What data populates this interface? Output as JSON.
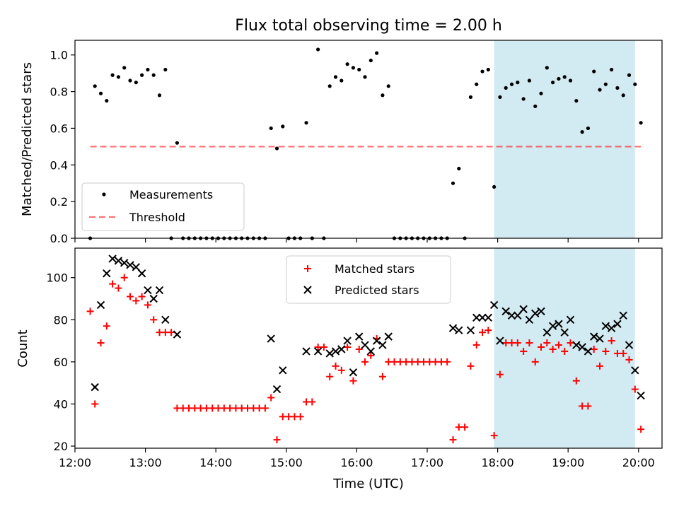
{
  "title": "Flux total observing time = 2.00 h",
  "colors": {
    "highlight": "#add8e6",
    "threshold": "#ff0000",
    "matched": "#ff0000",
    "predicted": "#000000",
    "measurement": "#000000"
  },
  "chart_data": [
    {
      "type": "scatter",
      "ylabel": "Matched/Predicted stars",
      "xlim": [
        "12:00",
        "20:20"
      ],
      "ylim": [
        0,
        1.08
      ],
      "y_ticks": [
        0.0,
        0.2,
        0.4,
        0.6,
        0.8,
        1.0
      ],
      "x_ticks": [
        "12:00",
        "13:00",
        "14:00",
        "15:00",
        "16:00",
        "17:00",
        "18:00",
        "19:00",
        "20:00"
      ],
      "highlight_span": [
        "17:57",
        "19:57"
      ],
      "legend_position": "lower-left",
      "series": [
        {
          "name": "Measurements",
          "kind": "points",
          "points": [
            [
              "12:13",
              0.0
            ],
            [
              "12:17",
              0.83
            ],
            [
              "12:22",
              0.79
            ],
            [
              "12:27",
              0.75
            ],
            [
              "12:32",
              0.89
            ],
            [
              "12:37",
              0.88
            ],
            [
              "12:42",
              0.93
            ],
            [
              "12:47",
              0.86
            ],
            [
              "12:52",
              0.85
            ],
            [
              "12:57",
              0.89
            ],
            [
              "13:02",
              0.92
            ],
            [
              "13:07",
              0.89
            ],
            [
              "13:12",
              0.78
            ],
            [
              "13:17",
              0.92
            ],
            [
              "13:22",
              0.0
            ],
            [
              "13:27",
              0.52
            ],
            [
              "13:32",
              0.0
            ],
            [
              "13:37",
              0.0
            ],
            [
              "13:42",
              0.0
            ],
            [
              "13:47",
              0.0
            ],
            [
              "13:52",
              0.0
            ],
            [
              "13:57",
              0.0
            ],
            [
              "14:02",
              0.0
            ],
            [
              "14:07",
              0.0
            ],
            [
              "14:12",
              0.0
            ],
            [
              "14:17",
              0.0
            ],
            [
              "14:22",
              0.0
            ],
            [
              "14:27",
              0.0
            ],
            [
              "14:32",
              0.0
            ],
            [
              "14:37",
              0.0
            ],
            [
              "14:42",
              0.0
            ],
            [
              "14:47",
              0.6
            ],
            [
              "14:52",
              0.49
            ],
            [
              "14:57",
              0.61
            ],
            [
              "15:02",
              0.0
            ],
            [
              "15:07",
              0.0
            ],
            [
              "15:12",
              0.0
            ],
            [
              "15:17",
              0.63
            ],
            [
              "15:22",
              0.0
            ],
            [
              "15:27",
              1.03
            ],
            [
              "15:32",
              0.0
            ],
            [
              "15:37",
              0.83
            ],
            [
              "15:42",
              0.88
            ],
            [
              "15:47",
              0.86
            ],
            [
              "15:52",
              0.95
            ],
            [
              "15:57",
              0.93
            ],
            [
              "16:02",
              0.92
            ],
            [
              "16:07",
              0.88
            ],
            [
              "16:12",
              0.97
            ],
            [
              "16:17",
              1.01
            ],
            [
              "16:22",
              0.78
            ],
            [
              "16:27",
              0.83
            ],
            [
              "16:32",
              0.0
            ],
            [
              "16:37",
              0.0
            ],
            [
              "16:42",
              0.0
            ],
            [
              "16:47",
              0.0
            ],
            [
              "16:52",
              0.0
            ],
            [
              "16:57",
              0.0
            ],
            [
              "17:02",
              0.0
            ],
            [
              "17:07",
              0.0
            ],
            [
              "17:12",
              0.0
            ],
            [
              "17:17",
              0.0
            ],
            [
              "17:22",
              0.3
            ],
            [
              "17:27",
              0.38
            ],
            [
              "17:32",
              0.0
            ],
            [
              "17:37",
              0.77
            ],
            [
              "17:42",
              0.84
            ],
            [
              "17:47",
              0.91
            ],
            [
              "17:52",
              0.92
            ],
            [
              "17:57",
              0.28
            ],
            [
              "18:02",
              0.77
            ],
            [
              "18:07",
              0.82
            ],
            [
              "18:12",
              0.84
            ],
            [
              "18:17",
              0.85
            ],
            [
              "18:22",
              0.76
            ],
            [
              "18:27",
              0.86
            ],
            [
              "18:32",
              0.72
            ],
            [
              "18:37",
              0.79
            ],
            [
              "18:42",
              0.93
            ],
            [
              "18:47",
              0.85
            ],
            [
              "18:52",
              0.87
            ],
            [
              "18:57",
              0.88
            ],
            [
              "19:02",
              0.86
            ],
            [
              "19:07",
              0.75
            ],
            [
              "19:12",
              0.58
            ],
            [
              "19:17",
              0.6
            ],
            [
              "19:22",
              0.91
            ],
            [
              "19:27",
              0.81
            ],
            [
              "19:32",
              0.84
            ],
            [
              "19:37",
              0.92
            ],
            [
              "19:42",
              0.82
            ],
            [
              "19:47",
              0.78
            ],
            [
              "19:52",
              0.89
            ],
            [
              "19:57",
              0.84
            ],
            [
              "20:02",
              0.63
            ]
          ]
        },
        {
          "name": "Threshold",
          "kind": "dashed-line",
          "x": [
            "12:13",
            "20:02"
          ],
          "y": [
            0.5,
            0.5
          ]
        }
      ]
    },
    {
      "type": "scatter",
      "xlabel": "Time (UTC)",
      "ylabel": "Count",
      "xlim": [
        "12:00",
        "20:20"
      ],
      "ylim": [
        19,
        114
      ],
      "y_ticks": [
        20,
        40,
        60,
        80,
        100
      ],
      "x_ticks": [
        "12:00",
        "13:00",
        "14:00",
        "15:00",
        "16:00",
        "17:00",
        "18:00",
        "19:00",
        "20:00"
      ],
      "highlight_span": [
        "17:57",
        "19:57"
      ],
      "legend_position": "upper-center",
      "series": [
        {
          "name": "Matched stars",
          "marker": "plus",
          "points": [
            [
              "12:13",
              84
            ],
            [
              "12:17",
              40
            ],
            [
              "12:22",
              69
            ],
            [
              "12:27",
              77
            ],
            [
              "12:32",
              97
            ],
            [
              "12:37",
              95
            ],
            [
              "12:42",
              100
            ],
            [
              "12:47",
              91
            ],
            [
              "12:52",
              89
            ],
            [
              "12:57",
              91
            ],
            [
              "13:02",
              87
            ],
            [
              "13:07",
              80
            ],
            [
              "13:12",
              74
            ],
            [
              "13:17",
              74
            ],
            [
              "13:22",
              74
            ],
            [
              "13:27",
              38
            ],
            [
              "13:32",
              38
            ],
            [
              "13:37",
              38
            ],
            [
              "13:42",
              38
            ],
            [
              "13:47",
              38
            ],
            [
              "13:52",
              38
            ],
            [
              "13:57",
              38
            ],
            [
              "14:02",
              38
            ],
            [
              "14:07",
              38
            ],
            [
              "14:12",
              38
            ],
            [
              "14:17",
              38
            ],
            [
              "14:22",
              38
            ],
            [
              "14:27",
              38
            ],
            [
              "14:32",
              38
            ],
            [
              "14:37",
              38
            ],
            [
              "14:42",
              38
            ],
            [
              "14:47",
              43
            ],
            [
              "14:52",
              23
            ],
            [
              "14:57",
              34
            ],
            [
              "15:02",
              34
            ],
            [
              "15:07",
              34
            ],
            [
              "15:12",
              34
            ],
            [
              "15:17",
              41
            ],
            [
              "15:22",
              41
            ],
            [
              "15:27",
              67
            ],
            [
              "15:32",
              67
            ],
            [
              "15:37",
              53
            ],
            [
              "15:42",
              58
            ],
            [
              "15:47",
              56
            ],
            [
              "15:52",
              67
            ],
            [
              "15:57",
              51
            ],
            [
              "16:02",
              66
            ],
            [
              "16:07",
              60
            ],
            [
              "16:12",
              63
            ],
            [
              "16:17",
              71
            ],
            [
              "16:22",
              53
            ],
            [
              "16:27",
              60
            ],
            [
              "16:32",
              60
            ],
            [
              "16:37",
              60
            ],
            [
              "16:42",
              60
            ],
            [
              "16:47",
              60
            ],
            [
              "16:52",
              60
            ],
            [
              "16:57",
              60
            ],
            [
              "17:02",
              60
            ],
            [
              "17:07",
              60
            ],
            [
              "17:12",
              60
            ],
            [
              "17:17",
              60
            ],
            [
              "17:22",
              23
            ],
            [
              "17:27",
              29
            ],
            [
              "17:32",
              29
            ],
            [
              "17:37",
              58
            ],
            [
              "17:42",
              68
            ],
            [
              "17:47",
              74
            ],
            [
              "17:52",
              75
            ],
            [
              "17:57",
              25
            ],
            [
              "18:02",
              54
            ],
            [
              "18:07",
              69
            ],
            [
              "18:12",
              69
            ],
            [
              "18:17",
              69
            ],
            [
              "18:22",
              65
            ],
            [
              "18:27",
              69
            ],
            [
              "18:32",
              60
            ],
            [
              "18:37",
              67
            ],
            [
              "18:42",
              69
            ],
            [
              "18:47",
              66
            ],
            [
              "18:52",
              68
            ],
            [
              "18:57",
              65
            ],
            [
              "19:02",
              69
            ],
            [
              "19:07",
              51
            ],
            [
              "19:12",
              39
            ],
            [
              "19:17",
              39
            ],
            [
              "19:22",
              66
            ],
            [
              "19:27",
              58
            ],
            [
              "19:32",
              65
            ],
            [
              "19:37",
              70
            ],
            [
              "19:42",
              64
            ],
            [
              "19:47",
              64
            ],
            [
              "19:52",
              61
            ],
            [
              "19:57",
              47
            ],
            [
              "20:02",
              28
            ]
          ]
        },
        {
          "name": "Predicted stars",
          "marker": "x",
          "points": [
            [
              "12:17",
              48
            ],
            [
              "12:22",
              87
            ],
            [
              "12:27",
              102
            ],
            [
              "12:32",
              109
            ],
            [
              "12:37",
              108
            ],
            [
              "12:42",
              107
            ],
            [
              "12:47",
              106
            ],
            [
              "12:52",
              105
            ],
            [
              "12:57",
              102
            ],
            [
              "13:02",
              94
            ],
            [
              "13:07",
              90
            ],
            [
              "13:12",
              94
            ],
            [
              "13:17",
              80
            ],
            [
              "13:27",
              73
            ],
            [
              "14:47",
              71
            ],
            [
              "14:52",
              47
            ],
            [
              "14:57",
              56
            ],
            [
              "15:17",
              65
            ],
            [
              "15:27",
              65
            ],
            [
              "15:37",
              64
            ],
            [
              "15:42",
              65
            ],
            [
              "15:47",
              66
            ],
            [
              "15:52",
              70
            ],
            [
              "15:57",
              55
            ],
            [
              "16:02",
              72
            ],
            [
              "16:07",
              68
            ],
            [
              "16:12",
              65
            ],
            [
              "16:17",
              70
            ],
            [
              "16:22",
              68
            ],
            [
              "16:27",
              72
            ],
            [
              "17:22",
              76
            ],
            [
              "17:27",
              75
            ],
            [
              "17:37",
              75
            ],
            [
              "17:42",
              81
            ],
            [
              "17:47",
              81
            ],
            [
              "17:52",
              81
            ],
            [
              "17:57",
              87
            ],
            [
              "18:02",
              70
            ],
            [
              "18:07",
              84
            ],
            [
              "18:12",
              82
            ],
            [
              "18:17",
              82
            ],
            [
              "18:22",
              85
            ],
            [
              "18:27",
              80
            ],
            [
              "18:32",
              83
            ],
            [
              "18:37",
              84
            ],
            [
              "18:42",
              74
            ],
            [
              "18:47",
              77
            ],
            [
              "18:52",
              78
            ],
            [
              "18:57",
              74
            ],
            [
              "19:02",
              80
            ],
            [
              "19:07",
              68
            ],
            [
              "19:12",
              67
            ],
            [
              "19:17",
              65
            ],
            [
              "19:22",
              72
            ],
            [
              "19:27",
              71
            ],
            [
              "19:32",
              77
            ],
            [
              "19:37",
              76
            ],
            [
              "19:42",
              78
            ],
            [
              "19:47",
              82
            ],
            [
              "19:52",
              68
            ],
            [
              "19:57",
              56
            ],
            [
              "20:02",
              44
            ]
          ]
        }
      ]
    }
  ]
}
